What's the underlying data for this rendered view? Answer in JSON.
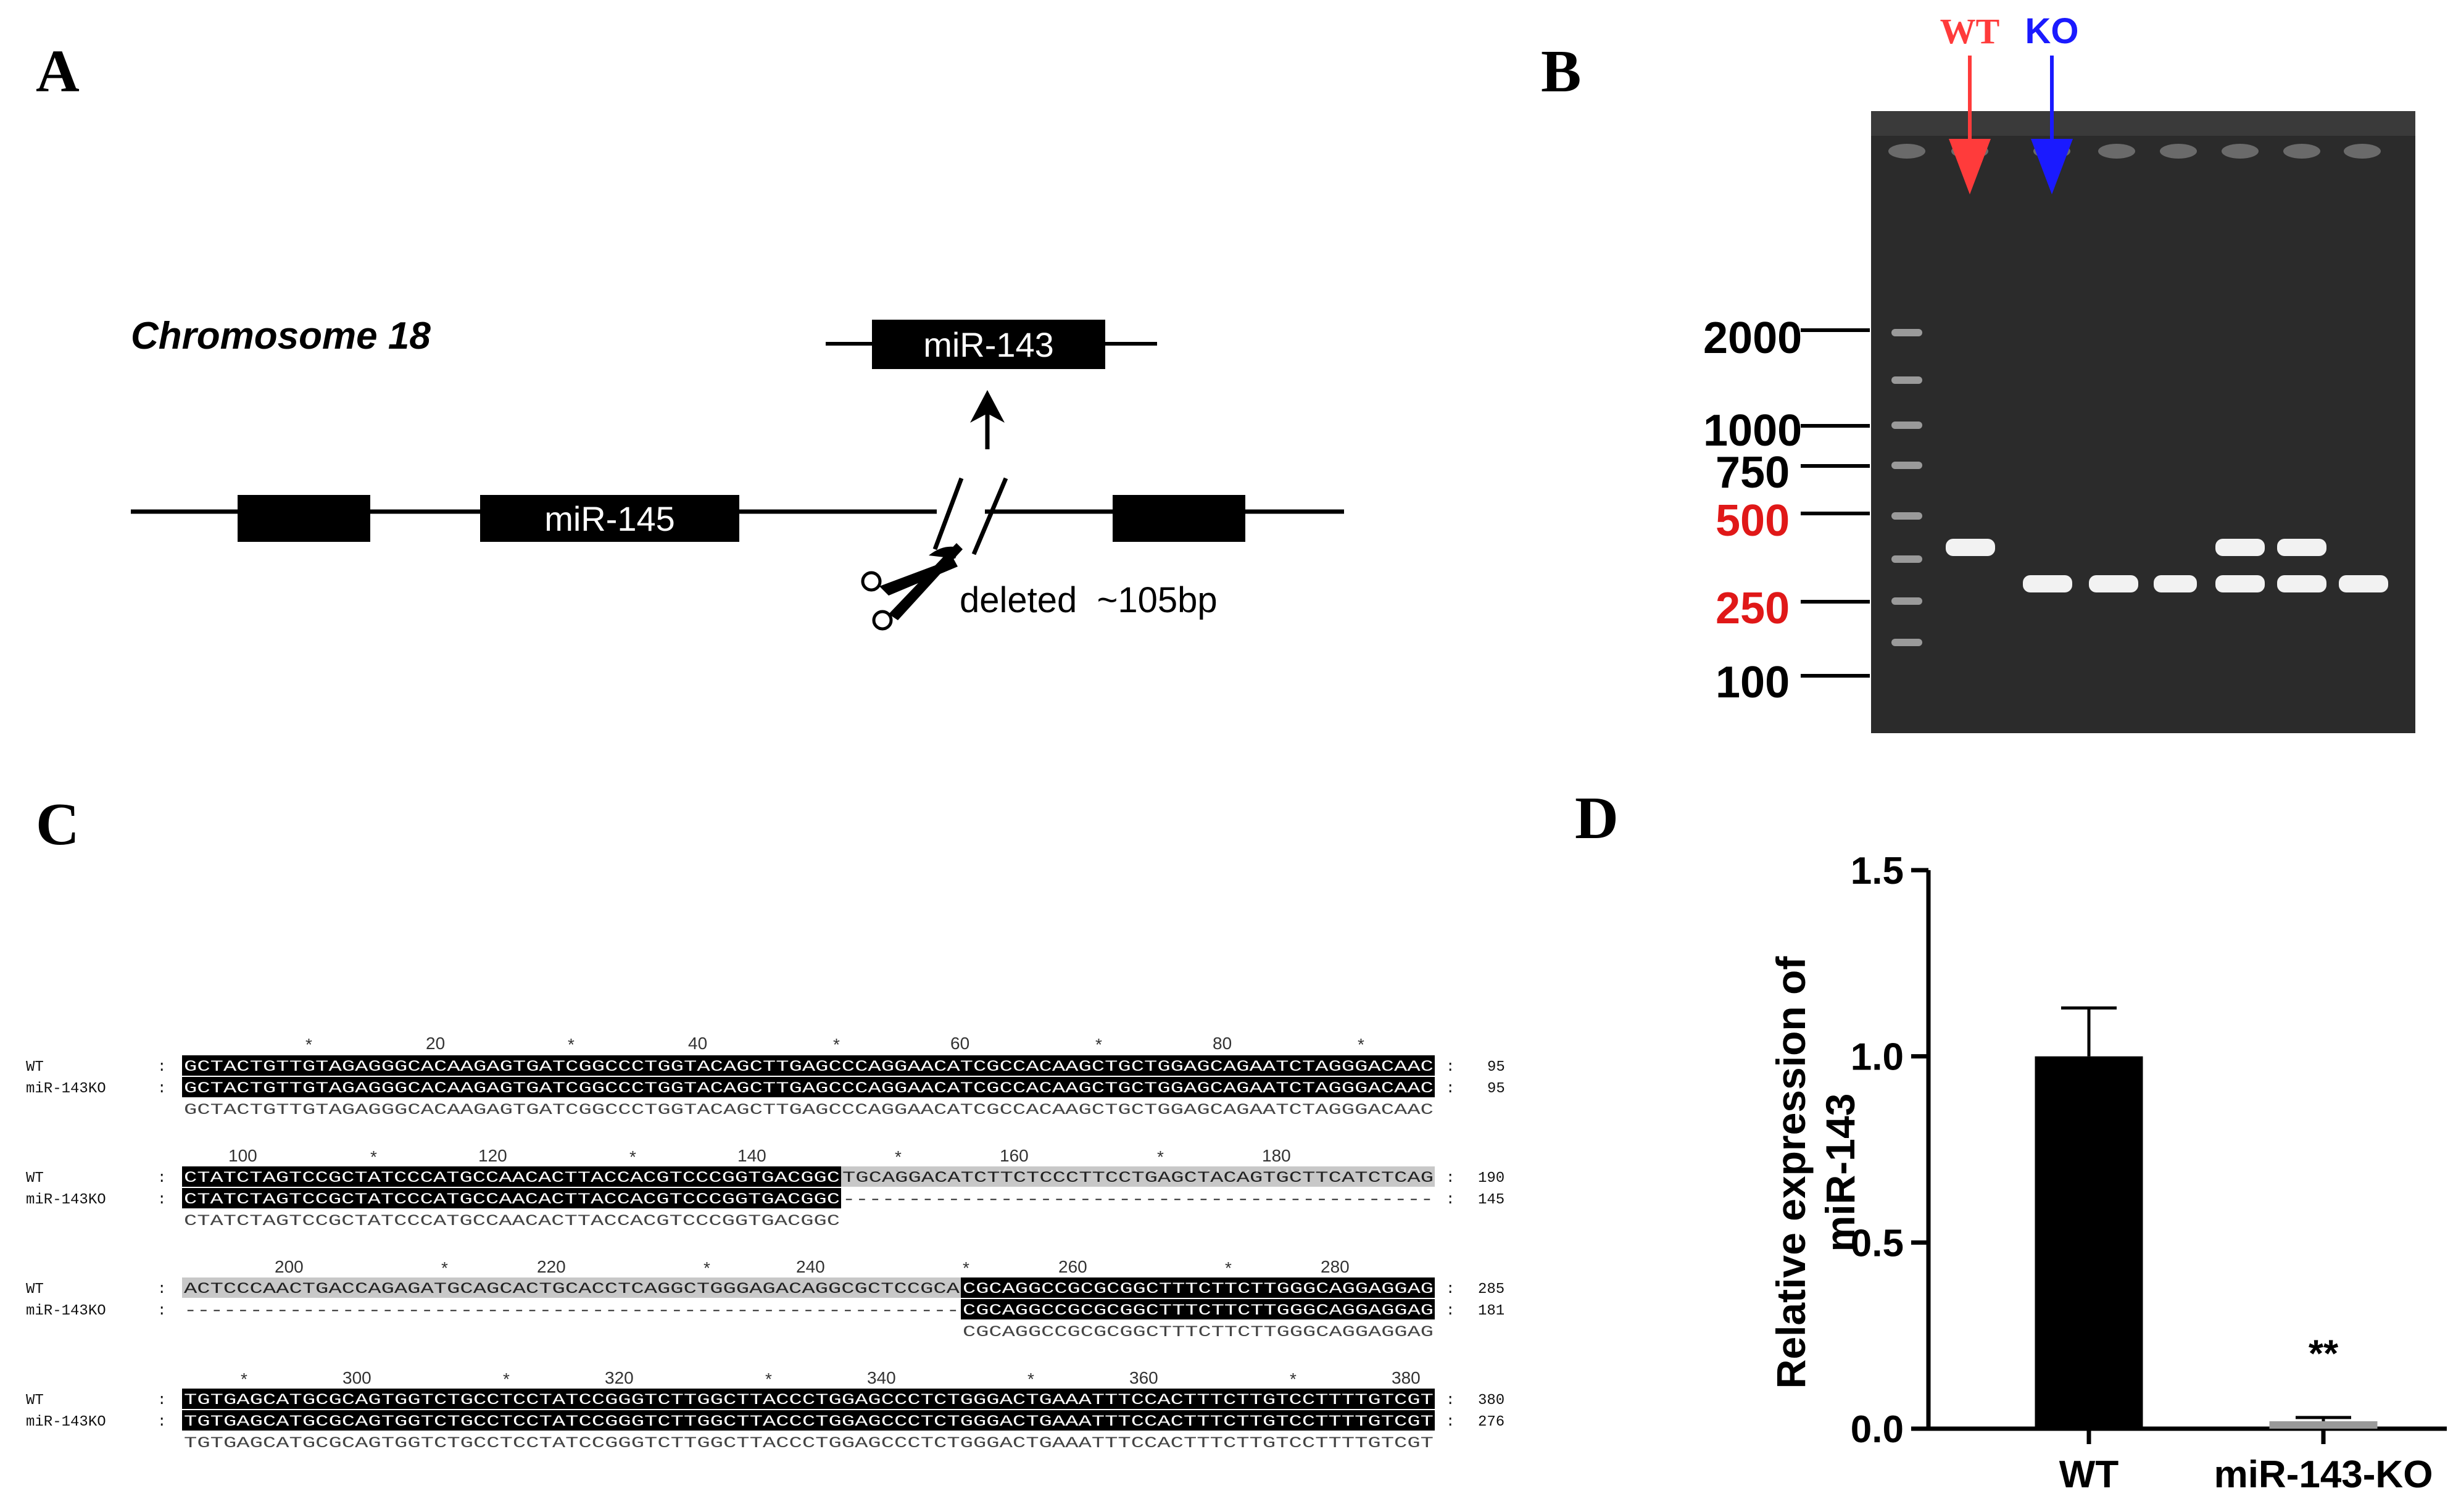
{
  "panels": {
    "A": "A",
    "B": "B",
    "C": "C",
    "D": "D"
  },
  "panel_a": {
    "chromosome_label": "Chromosome 18",
    "mir145_label": "miR-145",
    "mir143_label": "miR-143",
    "deletion_label": "deleted  ~105bp"
  },
  "panel_b": {
    "wt_label": "WT",
    "ko_label": "KO",
    "wt_color": "#ff3b3b",
    "ko_color": "#1a1aff",
    "ladder": [
      {
        "label": "2000",
        "color": "#000000"
      },
      {
        "label": "1000",
        "color": "#000000"
      },
      {
        "label": "750",
        "color": "#000000"
      },
      {
        "label": "500",
        "color": "#e01818"
      },
      {
        "label": "250",
        "color": "#e01818"
      },
      {
        "label": "100",
        "color": "#000000"
      }
    ],
    "lanes": [
      "WT",
      "KO",
      "KO",
      "KO",
      "Het",
      "Het",
      "KO"
    ]
  },
  "panel_c": {
    "blocks": [
      {
        "ruler": [
          "20",
          "40",
          "60",
          "80"
        ],
        "wt_seq": "GCTACTGTTGTAGAGGGCACAAGAGTGATCGGCCCTGGTACAGCTTGAGCCCAGGAACATCGCCACAAGCTGCTGGAGCAGAATCTAGGGACAAC",
        "ko_seq": "GCTACTGTTGTAGAGGGCACAAGAGTGATCGGCCCTGGTACAGCTTGAGCCCAGGAACATCGCCACAAGCTGCTGGAGCAGAATCTAGGGACAAC",
        "consensus": "GCTACTGTTGTAGAGGGCACAAGAGTGATCGGCCCTGGTACAGCTTGAGCCCAGGAACATCGCCACAAGCTGCTGGAGCAGAATCTAGGGACAAC",
        "wt_end": "95",
        "ko_end": "95"
      },
      {
        "ruler": [
          "100",
          "120",
          "140",
          "160",
          "180"
        ],
        "wt_seq_a": "CTATCTAGTCCGCTATCCCATGCCAACACTTACCACGTCCCGGTGACGGC",
        "wt_seq_b": "TGCAGGACATCTTCTCCCTTCCTGAGCTACAGTGCTTCATCTCAG",
        "ko_seq_a": "CTATCTAGTCCGCTATCCCATGCCAACACTTACCACGTCCCGGTGACGGC",
        "ko_seq_b": "---------------------------------------------",
        "consensus": "CTATCTAGTCCGCTATCCCATGCCAACACTTACCACGTCCCGGTGACGGC",
        "wt_end": "190",
        "ko_end": "145"
      },
      {
        "ruler": [
          "200",
          "220",
          "240",
          "260",
          "280"
        ],
        "wt_seq_a": "ACTCCCAACTGACCAGAGATGCAGCACTGCACCTCAGGCTGGGAGACAGGCGCTCCGCA",
        "wt_seq_b": "CGCAGGCCGCGCGGCTTTCTTCTTGGGCAGGAGGAG",
        "ko_seq_a": "-----------------------------------------------------------",
        "ko_seq_b": "CGCAGGCCGCGCGGCTTTCTTCTTGGGCAGGAGGAG",
        "consensus": "CGCAGGCCGCGCGGCTTTCTTCTTGGGCAGGAGGAG",
        "wt_end": "285",
        "ko_end": "181"
      },
      {
        "ruler": [
          "300",
          "320",
          "340",
          "360",
          "380"
        ],
        "wt_seq": "TGTGAGCATGCGCAGTGGTCTGCCTCCTATCCGGGTCTTGGCTTACCCTGGAGCCCTCTGGGACTGAAATTTCCACTTTCTTGTCCTTTTGTCGT",
        "ko_seq": "TGTGAGCATGCGCAGTGGTCTGCCTCCTATCCGGGTCTTGGCTTACCCTGGAGCCCTCTGGGACTGAAATTTCCACTTTCTTGTCCTTTTGTCGT",
        "consensus": "TGTGAGCATGCGCAGTGGTCTGCCTCCTATCCGGGTCTTGGCTTACCCTGGAGCCCTCTGGGACTGAAATTTCCACTTTCTTGTCCTTTTGTCGT",
        "wt_end": "380",
        "ko_end": "276"
      }
    ],
    "wt_name": "WT",
    "ko_name": "miR-143KO",
    "sep": ":"
  },
  "chart_data": {
    "type": "bar",
    "categories": [
      "WT",
      "miR-143-KO"
    ],
    "values": [
      1.0,
      0.02
    ],
    "errors": [
      0.13,
      0.01
    ],
    "colors": [
      "#000000",
      "#999999"
    ],
    "ylabel": "Relative expression of miR-143",
    "ylabel_lines": [
      "Relative expression of",
      "miR-143"
    ],
    "ylim": [
      0,
      1.5
    ],
    "yticks": [
      "0.0",
      "0.5",
      "1.0",
      "1.5"
    ],
    "annotation": "**"
  }
}
